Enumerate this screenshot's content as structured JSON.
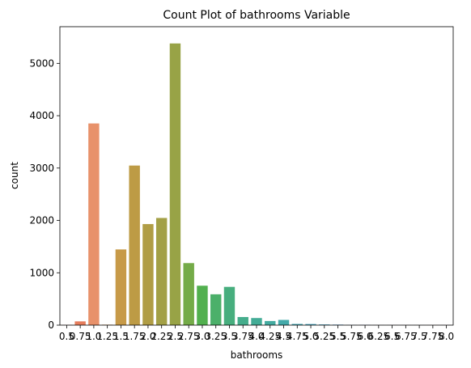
{
  "chart_data": {
    "type": "bar",
    "title": "Count Plot of bathrooms Variable",
    "xlabel": "bathrooms",
    "ylabel": "count",
    "ylim": [
      0,
      5700
    ],
    "yticks": [
      "0",
      "1000",
      "2000",
      "3000",
      "4000",
      "5000"
    ],
    "categories": [
      "0.5",
      "0.75",
      "1.0",
      "1.25",
      "1.5",
      "1.75",
      "2.0",
      "2.25",
      "2.5",
      "2.75",
      "3.0",
      "3.25",
      "3.5",
      "3.75",
      "4.0",
      "4.25",
      "4.5",
      "4.75",
      "5.0",
      "5.25",
      "5.5",
      "5.75",
      "6.0",
      "6.25",
      "6.5",
      "6.75",
      "7.5",
      "7.75",
      "8.0"
    ],
    "values": [
      4,
      72,
      3852,
      9,
      1446,
      3048,
      1930,
      2047,
      5380,
      1185,
      753,
      589,
      731,
      155,
      136,
      79,
      100,
      23,
      21,
      13,
      10,
      4,
      6,
      2,
      2,
      2,
      1,
      1,
      2
    ],
    "colors": [
      "#e8716a",
      "#e67d5c",
      "#e8916a",
      "#d99550",
      "#c79a48",
      "#bd9b45",
      "#b09d45",
      "#a3a046",
      "#98a346",
      "#74ab48",
      "#52b04f",
      "#4cb06a",
      "#47ae7e",
      "#45ad8c",
      "#43ac96",
      "#43aba0",
      "#44aaaa",
      "#46a8b4",
      "#48a7be",
      "#4aa6c9",
      "#5aa2d6",
      "#7b9de0",
      "#959ae6",
      "#a796e6",
      "#b78fe4",
      "#c78ae0",
      "#d783d8",
      "#e37ccb",
      "#ea76bb"
    ]
  }
}
